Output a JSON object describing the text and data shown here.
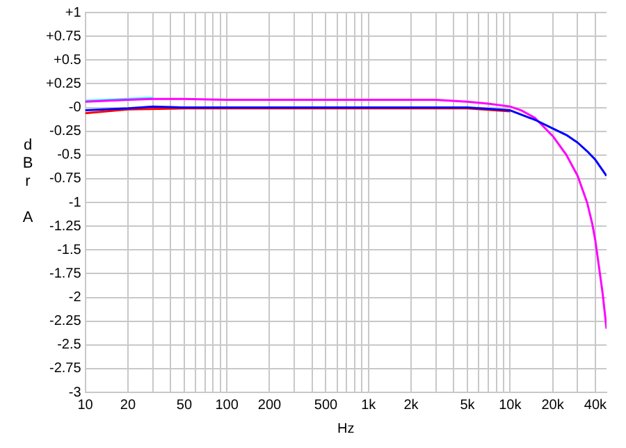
{
  "chart_data": {
    "type": "line",
    "xlabel": "Hz",
    "ylabel": "dBr A",
    "log": "x",
    "grid": true,
    "legend": false,
    "marker": "none",
    "line_style": "solid",
    "xlim": [
      10,
      48000
    ],
    "xticks": [
      10,
      20,
      {
        "value": 30,
        "label": null
      },
      {
        "value": 40,
        "label": null
      },
      50,
      {
        "value": 60,
        "label": null
      },
      {
        "value": 70,
        "label": null
      },
      {
        "value": 80,
        "label": null
      },
      {
        "value": 90,
        "label": null
      },
      100,
      200,
      {
        "value": 300,
        "label": null
      },
      {
        "value": 400,
        "label": null
      },
      500,
      {
        "value": 600,
        "label": null
      },
      {
        "value": 700,
        "label": null
      },
      {
        "value": 800,
        "label": null
      },
      {
        "value": 900,
        "label": null
      },
      {
        "value": 1000,
        "label": "1k"
      },
      {
        "value": 2000,
        "label": "2k"
      },
      {
        "value": 3000,
        "label": null
      },
      {
        "value": 4000,
        "label": null
      },
      {
        "value": 5000,
        "label": "5k"
      },
      {
        "value": 6000,
        "label": null
      },
      {
        "value": 7000,
        "label": null
      },
      {
        "value": 8000,
        "label": null
      },
      {
        "value": 9000,
        "label": null
      },
      {
        "value": 10000,
        "label": "10k"
      },
      {
        "value": 20000,
        "label": "20k"
      },
      {
        "value": 30000,
        "label": null
      },
      {
        "value": 40000,
        "label": "40k"
      }
    ],
    "ylim": [
      -3,
      1
    ],
    "yticks": [
      {
        "value": 1,
        "label": "+1"
      },
      {
        "value": 0.75,
        "label": "+0.75"
      },
      {
        "value": 0.5,
        "label": "+0.5"
      },
      {
        "value": 0.25,
        "label": "+0.25"
      },
      {
        "value": 0,
        "label": "-0"
      },
      -0.25,
      -0.5,
      -0.75,
      -1,
      -1.25,
      -1.5,
      -1.75,
      -2,
      -2.25,
      -2.5,
      -2.75,
      -3
    ],
    "series": [
      {
        "color": "#00ffff",
        "x": [
          10,
          20,
          30
        ],
        "values": [
          0.07,
          0.09,
          0.1
        ]
      },
      {
        "color": "#ff0000",
        "x": [
          10,
          20,
          50,
          100,
          1000,
          5000,
          10000
        ],
        "values": [
          -0.06,
          -0.02,
          -0.01,
          -0.01,
          -0.01,
          -0.01,
          -0.04
        ]
      },
      {
        "color": "#ff00ff",
        "x": [
          10,
          20,
          30,
          50,
          100,
          1000,
          3000,
          5000,
          7000,
          10000,
          12000,
          15000,
          20000,
          25000,
          30000,
          35000,
          38000,
          40000,
          45000,
          48000
        ],
        "values": [
          0.06,
          0.08,
          0.09,
          0.09,
          0.08,
          0.08,
          0.08,
          0.06,
          0.04,
          0.01,
          -0.03,
          -0.11,
          -0.3,
          -0.5,
          -0.72,
          -1.0,
          -1.22,
          -1.4,
          -1.95,
          -2.33
        ]
      },
      {
        "color": "#0000ff",
        "x": [
          10,
          20,
          30,
          50,
          100,
          1000,
          5000,
          10000,
          15000,
          20000,
          25000,
          30000,
          35000,
          40000,
          45000,
          48000
        ],
        "values": [
          -0.03,
          -0.01,
          0.01,
          0,
          0,
          0,
          0,
          -0.03,
          -0.13,
          -0.22,
          -0.29,
          -0.37,
          -0.46,
          -0.55,
          -0.66,
          -0.72
        ]
      }
    ]
  }
}
